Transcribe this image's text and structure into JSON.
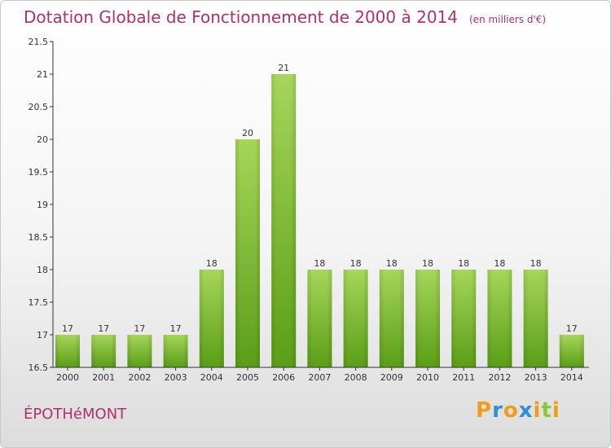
{
  "title": "Dotation Globale de Fonctionnement de 2000 à 2014",
  "unit_note": "(en milliers d'€)",
  "commune": "ÉPOTHéMONT",
  "logo": {
    "letters": [
      "P",
      "r",
      "o",
      "x",
      "i",
      "t",
      "i"
    ],
    "colors": [
      "#f29a1a",
      "#2f8fd8",
      "#f29a1a",
      "#2f8fd8",
      "#f29a1a",
      "#8cc63f",
      "#f29a1a"
    ]
  },
  "colors": {
    "title": "#b0306c",
    "bar_top": "#a6d65a",
    "bar_bottom": "#5a9e16",
    "axis": "#333333"
  },
  "chart_data": {
    "type": "bar",
    "title": "Dotation Globale de Fonctionnement de 2000 à 2014",
    "subtitle": "(en milliers d'€)",
    "xlabel": "",
    "ylabel": "",
    "categories": [
      "2000",
      "2001",
      "2002",
      "2003",
      "2004",
      "2005",
      "2006",
      "2007",
      "2008",
      "2009",
      "2010",
      "2011",
      "2012",
      "2013",
      "2014"
    ],
    "values": [
      17,
      17,
      17,
      17,
      18,
      20,
      21,
      18,
      18,
      18,
      18,
      18,
      18,
      18,
      17
    ],
    "data_labels": [
      "17",
      "17",
      "17",
      "17",
      "18",
      "20",
      "21",
      "18",
      "18",
      "18",
      "18",
      "18",
      "18",
      "18",
      "17"
    ],
    "ylim": [
      16.5,
      21.5
    ],
    "yticks": [
      16.5,
      17,
      17.5,
      18,
      18.5,
      19,
      19.5,
      20,
      20.5,
      21,
      21.5
    ],
    "ytick_labels": [
      "16.5",
      "17",
      "17.5",
      "18",
      "18.5",
      "19",
      "19.5",
      "20",
      "20.5",
      "21",
      "21.5"
    ],
    "grid": false,
    "legend": "none"
  }
}
